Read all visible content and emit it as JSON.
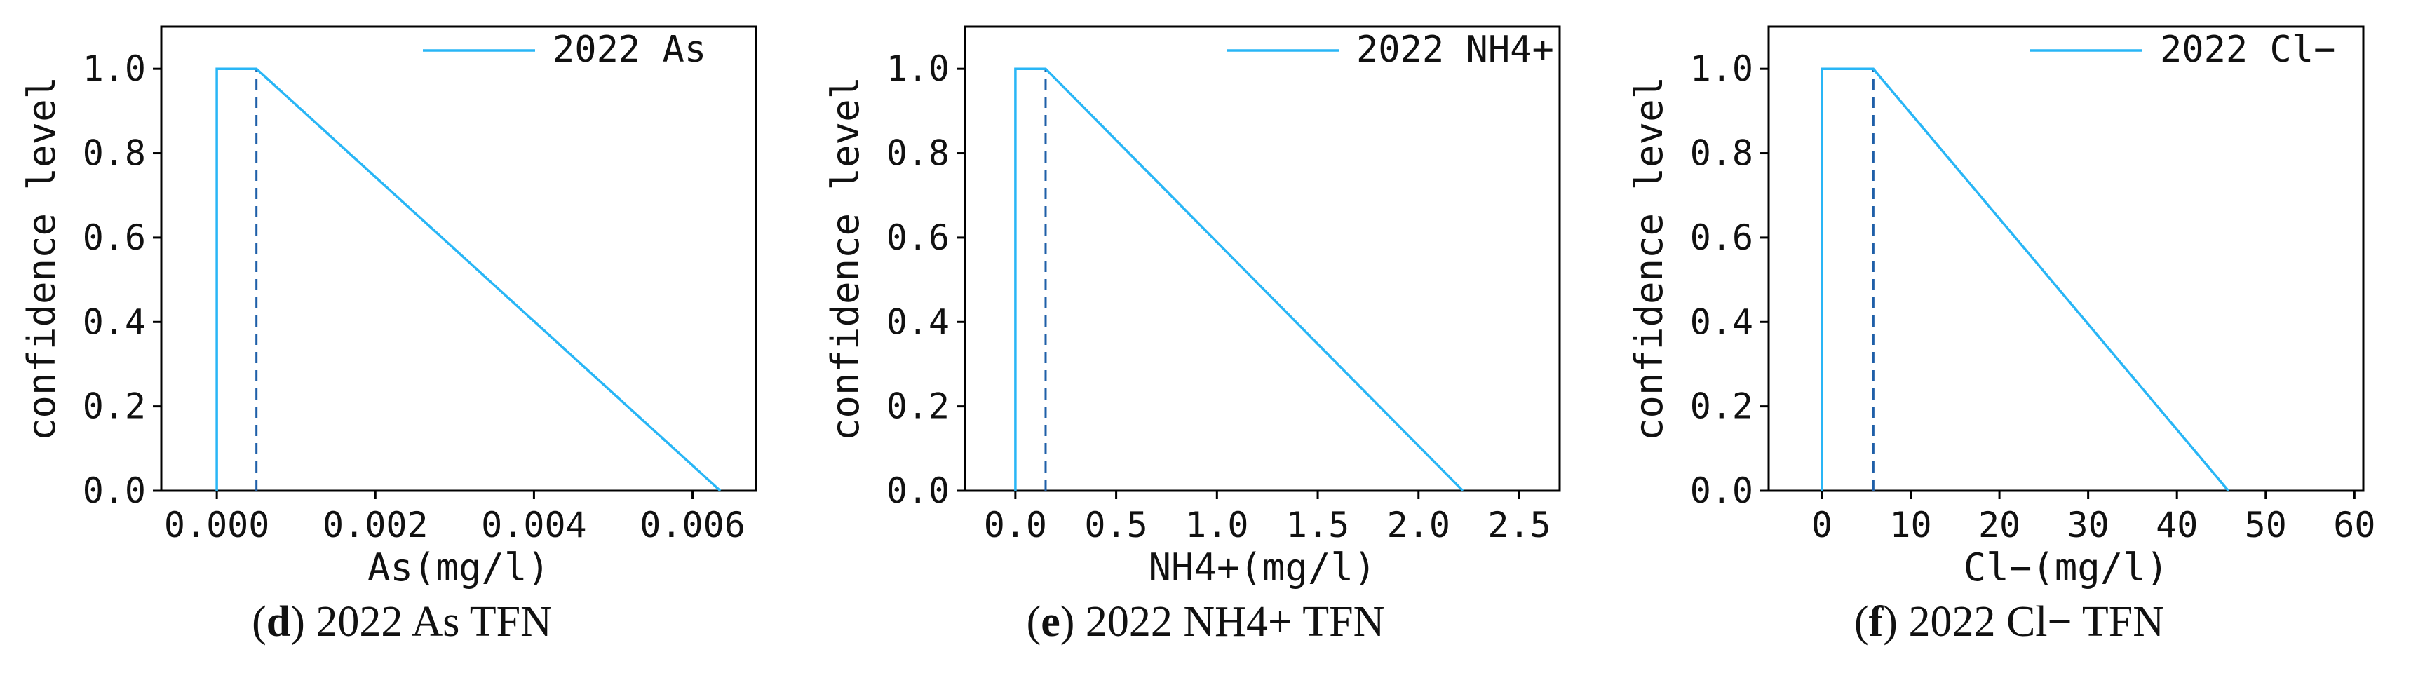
{
  "chart_data": [
    {
      "type": "line",
      "xlabel": "As(mg/l)",
      "ylabel": "confidence level",
      "xlim": [
        -0.0007,
        0.0068
      ],
      "ylim": [
        0,
        1.1
      ],
      "xticks": [
        0.0,
        0.002,
        0.004,
        0.006
      ],
      "xtick_labels": [
        "0.000",
        "0.002",
        "0.004",
        "0.006"
      ],
      "yticks": [
        0.0,
        0.2,
        0.4,
        0.6,
        0.8,
        1.0
      ],
      "ytick_labels": [
        "0.0",
        "0.2",
        "0.4",
        "0.6",
        "0.8",
        "1.0"
      ],
      "series": [
        {
          "name": "2022 As",
          "x": [
            0.0,
            0.0,
            0.0005,
            0.00635
          ],
          "y": [
            0.0,
            1.0,
            1.0,
            0.0
          ]
        }
      ],
      "dashed_vline": {
        "x": 0.0005,
        "y": [
          0,
          1.0
        ]
      },
      "legend_position": "top-right",
      "grid": false,
      "caption": {
        "tag": "d",
        "paren_open": "(",
        "paren_close": ")",
        "text": " 2022 As TFN"
      }
    },
    {
      "type": "line",
      "xlabel": "NH4+(mg/l)",
      "ylabel": "confidence level",
      "xlim": [
        -0.25,
        2.7
      ],
      "ylim": [
        0,
        1.1
      ],
      "xticks": [
        0.0,
        0.5,
        1.0,
        1.5,
        2.0,
        2.5
      ],
      "xtick_labels": [
        "0.0",
        "0.5",
        "1.0",
        "1.5",
        "2.0",
        "2.5"
      ],
      "yticks": [
        0.0,
        0.2,
        0.4,
        0.6,
        0.8,
        1.0
      ],
      "ytick_labels": [
        "0.0",
        "0.2",
        "0.4",
        "0.6",
        "0.8",
        "1.0"
      ],
      "series": [
        {
          "name": "2022 NH4+",
          "x": [
            0.0,
            0.0,
            0.15,
            2.22
          ],
          "y": [
            0.0,
            1.0,
            1.0,
            0.0
          ]
        }
      ],
      "dashed_vline": {
        "x": 0.15,
        "y": [
          0,
          1.0
        ]
      },
      "legend_position": "top-right",
      "grid": false,
      "caption": {
        "tag": "e",
        "paren_open": "(",
        "paren_close": ")",
        "text": " 2022 NH4+ TFN"
      }
    },
    {
      "type": "line",
      "xlabel": "Cl−(mg/l)",
      "ylabel": "confidence level",
      "xlim": [
        -6,
        61
      ],
      "ylim": [
        0,
        1.1
      ],
      "xticks": [
        0,
        10,
        20,
        30,
        40,
        50,
        60
      ],
      "xtick_labels": [
        "0",
        "10",
        "20",
        "30",
        "40",
        "50",
        "60"
      ],
      "yticks": [
        0.0,
        0.2,
        0.4,
        0.6,
        0.8,
        1.0
      ],
      "ytick_labels": [
        "0.0",
        "0.2",
        "0.4",
        "0.6",
        "0.8",
        "1.0"
      ],
      "series": [
        {
          "name": "2022 Cl−",
          "x": [
            0,
            0,
            5.8,
            45.8
          ],
          "y": [
            0.0,
            1.0,
            1.0,
            0.0
          ]
        }
      ],
      "dashed_vline": {
        "x": 5.8,
        "y": [
          0,
          1.0
        ]
      },
      "legend_position": "top-right",
      "grid": false,
      "caption": {
        "tag": "f",
        "paren_open": "(",
        "paren_close": ")",
        "text": " 2022 Cl− TFN"
      }
    }
  ],
  "colors": {
    "line": "#29b6f6",
    "dashed": "#1f5fa8",
    "axis": "#000000"
  }
}
